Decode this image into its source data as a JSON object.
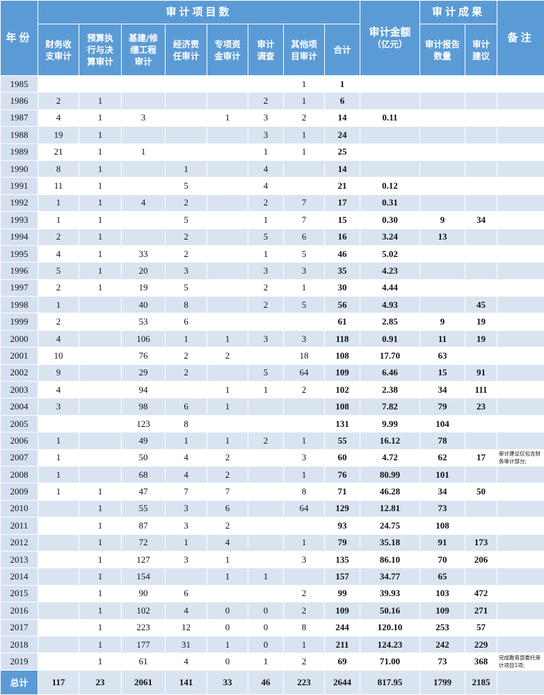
{
  "header": {
    "year": "年份",
    "group_items": "审计项目数",
    "group_results": "审计成果",
    "note": "备注",
    "items": [
      "财务收\n支审计",
      "预算执\n行与决\n算审计",
      "基建/修\n缮工程\n审计",
      "经济责\n任审计",
      "专项资\n金审计",
      "审计\n调查",
      "其他项\n目审计",
      "合计"
    ],
    "amount": "审计金额",
    "amount_unit": "（亿元）",
    "results": [
      "审计报告\n数量",
      "审计\n建议"
    ]
  },
  "table": {
    "rows": [
      [
        "1985",
        null,
        null,
        null,
        null,
        null,
        null,
        1,
        1,
        null,
        null,
        null,
        null
      ],
      [
        "1986",
        2,
        1,
        null,
        null,
        null,
        2,
        1,
        6,
        null,
        null,
        null,
        null
      ],
      [
        "1987",
        4,
        1,
        3,
        null,
        1,
        3,
        2,
        14,
        "0.11",
        null,
        null,
        null
      ],
      [
        "1988",
        19,
        1,
        null,
        null,
        null,
        3,
        1,
        24,
        null,
        null,
        null,
        null
      ],
      [
        "1989",
        21,
        1,
        1,
        null,
        null,
        1,
        1,
        25,
        null,
        null,
        null,
        null
      ],
      [
        "1990",
        8,
        1,
        null,
        1,
        null,
        4,
        null,
        14,
        null,
        null,
        null,
        null
      ],
      [
        "1991",
        11,
        1,
        null,
        5,
        null,
        4,
        null,
        21,
        "0.12",
        null,
        null,
        null
      ],
      [
        "1992",
        1,
        1,
        4,
        2,
        null,
        2,
        7,
        17,
        "0.31",
        null,
        null,
        null
      ],
      [
        "1993",
        1,
        1,
        null,
        5,
        null,
        1,
        7,
        15,
        "0.30",
        9,
        34,
        null
      ],
      [
        "1994",
        2,
        1,
        null,
        2,
        null,
        5,
        6,
        16,
        "3.24",
        13,
        null,
        null
      ],
      [
        "1995",
        4,
        1,
        33,
        2,
        null,
        1,
        5,
        46,
        "5.02",
        null,
        null,
        null
      ],
      [
        "1996",
        5,
        1,
        20,
        3,
        null,
        3,
        3,
        35,
        "4.23",
        null,
        null,
        null
      ],
      [
        "1997",
        2,
        1,
        19,
        5,
        null,
        2,
        1,
        30,
        "4.44",
        null,
        null,
        null
      ],
      [
        "1998",
        1,
        null,
        40,
        8,
        null,
        2,
        5,
        56,
        "4.93",
        null,
        45,
        null
      ],
      [
        "1999",
        2,
        null,
        53,
        6,
        null,
        null,
        null,
        61,
        "2.85",
        9,
        19,
        null
      ],
      [
        "2000",
        4,
        null,
        106,
        1,
        1,
        3,
        3,
        118,
        "0.91",
        11,
        19,
        null
      ],
      [
        "2001",
        10,
        null,
        76,
        2,
        2,
        null,
        18,
        108,
        "17.70",
        63,
        null,
        null
      ],
      [
        "2002",
        9,
        null,
        29,
        2,
        null,
        5,
        64,
        109,
        "6.46",
        15,
        91,
        null
      ],
      [
        "2003",
        4,
        null,
        94,
        null,
        1,
        1,
        2,
        102,
        "2.38",
        34,
        111,
        null
      ],
      [
        "2004",
        3,
        null,
        98,
        6,
        1,
        null,
        null,
        108,
        "7.82",
        79,
        23,
        null
      ],
      [
        "2005",
        null,
        null,
        123,
        8,
        null,
        null,
        null,
        131,
        "9.99",
        104,
        null,
        null
      ],
      [
        "2006",
        1,
        null,
        49,
        1,
        1,
        2,
        1,
        55,
        "16.12",
        78,
        null,
        null
      ],
      [
        "2007",
        1,
        null,
        50,
        4,
        2,
        null,
        3,
        60,
        "4.72",
        62,
        17,
        "审计建议仅包含财务审计部分;"
      ],
      [
        "2008",
        1,
        null,
        68,
        4,
        2,
        null,
        1,
        76,
        "80.99",
        101,
        null,
        null
      ],
      [
        "2009",
        1,
        1,
        47,
        7,
        7,
        null,
        8,
        71,
        "46.28",
        34,
        50,
        null
      ],
      [
        "2010",
        null,
        1,
        55,
        3,
        6,
        null,
        64,
        129,
        "12.81",
        73,
        null,
        null
      ],
      [
        "2011",
        null,
        1,
        87,
        3,
        2,
        null,
        null,
        93,
        "24.75",
        108,
        null,
        null
      ],
      [
        "2012",
        null,
        1,
        72,
        1,
        4,
        null,
        1,
        79,
        "35.18",
        91,
        173,
        null
      ],
      [
        "2013",
        null,
        1,
        127,
        3,
        1,
        null,
        3,
        135,
        "86.10",
        70,
        206,
        null
      ],
      [
        "2014",
        null,
        1,
        154,
        null,
        1,
        1,
        null,
        157,
        "34.77",
        65,
        null,
        null
      ],
      [
        "2015",
        null,
        1,
        90,
        6,
        null,
        null,
        2,
        99,
        "39.93",
        103,
        472,
        null
      ],
      [
        "2016",
        null,
        1,
        102,
        4,
        0,
        0,
        2,
        109,
        "50.16",
        109,
        271,
        null
      ],
      [
        "2017",
        null,
        1,
        223,
        12,
        0,
        0,
        8,
        244,
        "120.10",
        253,
        57,
        null
      ],
      [
        "2018",
        null,
        1,
        177,
        31,
        1,
        0,
        1,
        211,
        "124.23",
        242,
        229,
        null
      ],
      [
        "2019",
        null,
        1,
        61,
        4,
        0,
        1,
        2,
        69,
        "71.00",
        73,
        368,
        "完成教育部委托审计项目1项;"
      ]
    ],
    "total": [
      "总计",
      117,
      23,
      2061,
      141,
      33,
      46,
      223,
      2644,
      "817.95",
      1799,
      2185,
      null
    ]
  }
}
